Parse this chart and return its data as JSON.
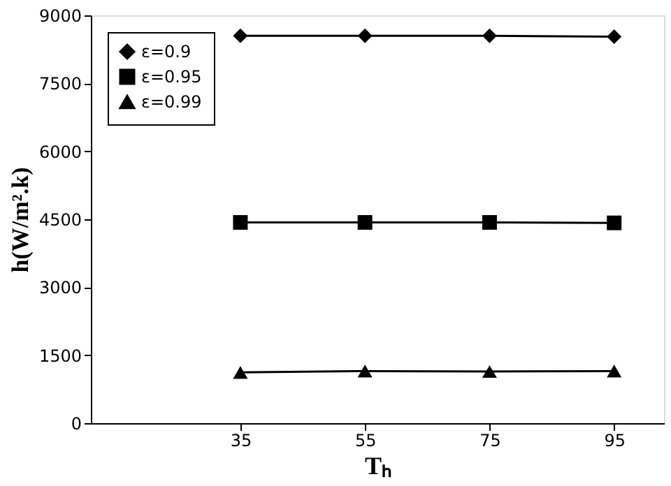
{
  "chart_data": {
    "type": "line",
    "xlabel": "Tₕ",
    "ylabel": "h(W/m².k)",
    "categories": [
      "35",
      "55",
      "75",
      "95"
    ],
    "series": [
      {
        "name": "ε=0.9",
        "color": "#000000",
        "marker": "diamond",
        "values": [
          8550,
          8550,
          8550,
          8530
        ]
      },
      {
        "name": "ε=0.95",
        "color": "#000000",
        "marker": "square",
        "values": [
          4430,
          4430,
          4430,
          4420
        ]
      },
      {
        "name": "ε=0.99",
        "color": "#000000",
        "marker": "triangle",
        "values": [
          1120,
          1150,
          1140,
          1150
        ]
      }
    ],
    "ylim": [
      0,
      9000
    ],
    "yticks": [
      0,
      1500,
      3000,
      4500,
      6000,
      7500,
      9000
    ],
    "grid": false,
    "legend": "top left",
    "line_style": "solid"
  }
}
